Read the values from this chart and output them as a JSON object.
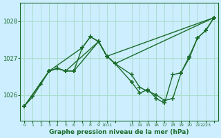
{
  "bg_color": "#cceeff",
  "grid_color": "#aaddcc",
  "line_color": "#1a6b2a",
  "title": "Graphe pression niveau de la mer (hPa)",
  "yticks": [
    1026,
    1027,
    1028
  ],
  "ylim": [
    1025.3,
    1028.5
  ],
  "xtick_positions": [
    0,
    1,
    2,
    3,
    4,
    5,
    6,
    7,
    8,
    9,
    10,
    11,
    13,
    14,
    15,
    16,
    17,
    18,
    19,
    20,
    21,
    22,
    23
  ],
  "xtick_labels": [
    "0",
    "1",
    "2",
    "3",
    "4",
    "5",
    "6",
    "7",
    "8",
    "9",
    "1011",
    "",
    "13",
    "14",
    "15",
    "16",
    "17",
    "18",
    "19",
    "20",
    "21",
    "2223",
    ""
  ],
  "series1": [
    [
      0,
      1025.7
    ],
    [
      1,
      1025.95
    ],
    [
      2,
      1026.3
    ],
    [
      3,
      1026.65
    ],
    [
      4,
      1026.72
    ],
    [
      5,
      1026.65
    ],
    [
      6,
      1026.65
    ],
    [
      7,
      1027.28
    ],
    [
      8,
      1027.58
    ],
    [
      9,
      1027.45
    ],
    [
      10,
      1027.05
    ],
    [
      11,
      1026.85
    ],
    [
      13,
      1026.55
    ],
    [
      14,
      1026.2
    ],
    [
      15,
      1026.1
    ],
    [
      16,
      1026.0
    ],
    [
      17,
      1025.85
    ],
    [
      18,
      1025.9
    ],
    [
      19,
      1026.6
    ],
    [
      20,
      1027.05
    ],
    [
      21,
      1027.55
    ],
    [
      22,
      1027.75
    ],
    [
      23,
      1028.1
    ]
  ],
  "series2": [
    [
      0,
      1025.7
    ],
    [
      3,
      1026.65
    ],
    [
      4,
      1026.72
    ],
    [
      5,
      1026.65
    ],
    [
      9,
      1027.45
    ],
    [
      10,
      1027.05
    ],
    [
      11,
      1026.85
    ],
    [
      13,
      1026.35
    ],
    [
      14,
      1026.05
    ],
    [
      15,
      1026.15
    ],
    [
      16,
      1025.9
    ],
    [
      17,
      1025.78
    ],
    [
      18,
      1026.55
    ],
    [
      19,
      1026.6
    ],
    [
      20,
      1027.0
    ],
    [
      21,
      1027.55
    ],
    [
      22,
      1027.75
    ],
    [
      23,
      1028.1
    ]
  ],
  "series3": [
    [
      0,
      1025.7
    ],
    [
      3,
      1026.65
    ],
    [
      7,
      1027.28
    ],
    [
      8,
      1027.58
    ],
    [
      9,
      1027.45
    ],
    [
      10,
      1027.05
    ],
    [
      23,
      1028.1
    ]
  ],
  "series4": [
    [
      3,
      1026.65
    ],
    [
      4,
      1026.72
    ],
    [
      5,
      1026.65
    ],
    [
      6,
      1026.65
    ],
    [
      9,
      1027.45
    ],
    [
      10,
      1027.05
    ],
    [
      11,
      1026.85
    ],
    [
      23,
      1028.1
    ]
  ],
  "xlim": [
    -0.5,
    23.5
  ]
}
